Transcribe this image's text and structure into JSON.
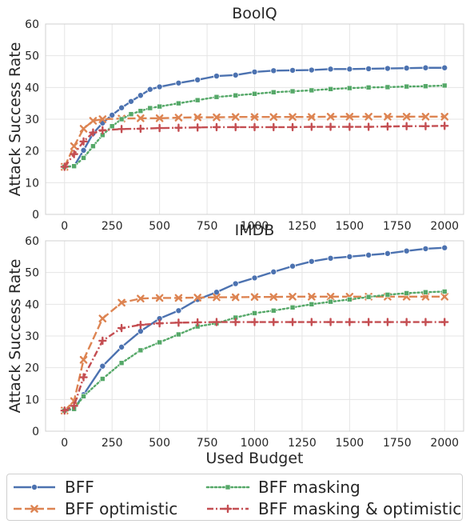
{
  "chart_data": [
    {
      "type": "line",
      "title": "BoolQ",
      "xlabel": "",
      "ylabel": "Attack Success Rate",
      "ylim": [
        0,
        60
      ],
      "xlim": [
        -100,
        2100
      ],
      "yticks": [
        0,
        10,
        20,
        30,
        40,
        50,
        60
      ],
      "xticks": [
        0,
        250,
        500,
        750,
        1000,
        1250,
        1500,
        1750,
        2000
      ],
      "grid": true,
      "series": [
        {
          "name": "BFF",
          "color": "#4c72b0",
          "dash": "solid",
          "marker": "circle",
          "x": [
            0,
            50,
            100,
            150,
            200,
            250,
            300,
            350,
            400,
            450,
            500,
            600,
            700,
            800,
            900,
            1000,
            1100,
            1200,
            1300,
            1400,
            1500,
            1600,
            1700,
            1800,
            1900,
            2000
          ],
          "y": [
            15,
            15.2,
            20.2,
            25.5,
            28.8,
            31.3,
            33.6,
            35.6,
            37.5,
            39.4,
            40.2,
            41.4,
            42.4,
            43.6,
            43.9,
            44.9,
            45.3,
            45.4,
            45.5,
            45.8,
            45.8,
            45.9,
            46.0,
            46.1,
            46.2,
            46.2
          ]
        },
        {
          "name": "BFF optimistic",
          "color": "#dd8452",
          "dash": "dashed",
          "marker": "x",
          "x": [
            0,
            50,
            100,
            150,
            200,
            300,
            400,
            500,
            600,
            700,
            800,
            900,
            1000,
            1100,
            1200,
            1300,
            1400,
            1500,
            1600,
            1700,
            1800,
            1900,
            2000
          ],
          "y": [
            15,
            21.5,
            27.0,
            29.5,
            30.0,
            30.2,
            30.3,
            30.3,
            30.5,
            30.6,
            30.6,
            30.7,
            30.7,
            30.7,
            30.7,
            30.7,
            30.8,
            30.8,
            30.8,
            30.8,
            30.8,
            30.8,
            30.8
          ]
        },
        {
          "name": "BFF masking",
          "color": "#55a868",
          "dash": "dotted",
          "marker": "square",
          "x": [
            0,
            50,
            100,
            150,
            200,
            250,
            300,
            350,
            400,
            450,
            500,
            600,
            700,
            800,
            900,
            1000,
            1100,
            1200,
            1300,
            1400,
            1500,
            1600,
            1700,
            1800,
            1900,
            2000
          ],
          "y": [
            15,
            15.2,
            17.8,
            21.5,
            25.0,
            27.8,
            30.0,
            31.6,
            32.6,
            33.5,
            34.0,
            35.0,
            36.0,
            37.0,
            37.5,
            38.0,
            38.5,
            38.8,
            39.1,
            39.5,
            39.8,
            40.0,
            40.1,
            40.3,
            40.4,
            40.6
          ]
        },
        {
          "name": "BFF masking & optimistic",
          "color": "#c44e52",
          "dash": "dashdot",
          "marker": "plus",
          "x": [
            0,
            50,
            100,
            150,
            200,
            300,
            400,
            500,
            600,
            700,
            800,
            900,
            1000,
            1100,
            1200,
            1300,
            1400,
            1500,
            1600,
            1700,
            1800,
            1900,
            2000
          ],
          "y": [
            15,
            19.0,
            23.0,
            25.8,
            26.5,
            26.9,
            27.0,
            27.2,
            27.3,
            27.4,
            27.5,
            27.5,
            27.5,
            27.5,
            27.5,
            27.6,
            27.6,
            27.6,
            27.6,
            27.7,
            27.8,
            27.8,
            27.9
          ]
        }
      ]
    },
    {
      "type": "line",
      "title": "IMDB",
      "xlabel": "Used Budget",
      "ylabel": "Attack Success Rate",
      "ylim": [
        0,
        60
      ],
      "xlim": [
        -100,
        2100
      ],
      "yticks": [
        0,
        10,
        20,
        30,
        40,
        50,
        60
      ],
      "xticks": [
        0,
        250,
        500,
        750,
        1000,
        1250,
        1500,
        1750,
        2000
      ],
      "grid": true,
      "series": [
        {
          "name": "BFF",
          "color": "#4c72b0",
          "dash": "solid",
          "marker": "circle",
          "x": [
            0,
            50,
            100,
            200,
            300,
            400,
            500,
            600,
            700,
            800,
            900,
            1000,
            1100,
            1200,
            1300,
            1400,
            1500,
            1600,
            1700,
            1800,
            1900,
            2000
          ],
          "y": [
            6.5,
            7.0,
            11.5,
            20.5,
            26.5,
            31.5,
            35.5,
            38.0,
            41.5,
            43.8,
            46.5,
            48.3,
            50.2,
            52.0,
            53.5,
            54.5,
            55.0,
            55.5,
            56.0,
            56.8,
            57.5,
            57.8
          ]
        },
        {
          "name": "BFF optimistic",
          "color": "#dd8452",
          "dash": "dashed",
          "marker": "x",
          "x": [
            0,
            50,
            100,
            200,
            300,
            400,
            500,
            600,
            700,
            800,
            900,
            1000,
            1100,
            1200,
            1300,
            1400,
            1500,
            1600,
            1700,
            1800,
            1900,
            2000
          ],
          "y": [
            6.5,
            9.5,
            22.5,
            35.5,
            40.5,
            41.8,
            42.0,
            42.0,
            42.1,
            42.2,
            42.2,
            42.3,
            42.3,
            42.4,
            42.4,
            42.4,
            42.4,
            42.4,
            42.4,
            42.4,
            42.4,
            42.4
          ]
        },
        {
          "name": "BFF masking",
          "color": "#55a868",
          "dash": "dotted",
          "marker": "square",
          "x": [
            0,
            50,
            100,
            200,
            300,
            400,
            500,
            600,
            700,
            800,
            900,
            1000,
            1100,
            1200,
            1300,
            1400,
            1500,
            1600,
            1700,
            1800,
            1900,
            2000
          ],
          "y": [
            6.5,
            7.0,
            11.0,
            16.5,
            21.5,
            25.5,
            28.0,
            30.5,
            33.0,
            34.0,
            35.8,
            37.2,
            38.0,
            39.0,
            40.0,
            40.8,
            41.5,
            42.3,
            43.0,
            43.5,
            43.8,
            44.0
          ]
        },
        {
          "name": "BFF masking & optimistic",
          "color": "#c44e52",
          "dash": "dashdot",
          "marker": "plus",
          "x": [
            0,
            50,
            100,
            200,
            300,
            400,
            500,
            600,
            700,
            800,
            900,
            1000,
            1100,
            1200,
            1300,
            1400,
            1500,
            1600,
            1700,
            1800,
            1900,
            2000
          ],
          "y": [
            6.5,
            8.0,
            17.0,
            28.5,
            32.5,
            33.5,
            34.0,
            34.2,
            34.3,
            34.4,
            34.4,
            34.4,
            34.4,
            34.4,
            34.4,
            34.4,
            34.4,
            34.4,
            34.4,
            34.4,
            34.4,
            34.4
          ]
        }
      ]
    }
  ],
  "legend": {
    "entries": [
      {
        "label": "BFF",
        "color": "#4c72b0",
        "dash": "solid",
        "marker": "circle"
      },
      {
        "label": "BFF masking",
        "color": "#55a868",
        "dash": "dotted",
        "marker": "square"
      },
      {
        "label": "BFF optimistic",
        "color": "#dd8452",
        "dash": "dashed",
        "marker": "x"
      },
      {
        "label": "BFF masking & optimistic",
        "color": "#c44e52",
        "dash": "dashdot",
        "marker": "plus"
      }
    ]
  },
  "style": {
    "grid_color": "#e5e5e5",
    "axis_text_color": "#262626",
    "spine_color": "#d0d0d0"
  }
}
